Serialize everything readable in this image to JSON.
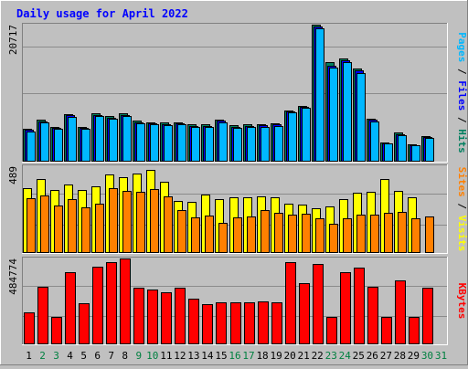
{
  "title": "Daily usage for April 2022",
  "colors": {
    "background": "#c0c0c0",
    "panel": "#c0c0c0",
    "title": "#0000ff",
    "grid": "#8b8b8b",
    "pages": "#00b7ff",
    "files": "#0000ff",
    "hits": "#007f5f",
    "visits": "#ffff00",
    "sites": "#ff8000",
    "kbytes": "#ff0000",
    "weekday": "#000000",
    "weekend": "#008040"
  },
  "chart_data": [
    {
      "type": "bar",
      "panel": "hits-files-pages",
      "ylabel_parts": [
        {
          "text": "Pages",
          "color_key": "pages"
        },
        {
          "text": " / ",
          "color_key": "weekday"
        },
        {
          "text": "Files",
          "color_key": "files"
        },
        {
          "text": " / ",
          "color_key": "weekday"
        },
        {
          "text": "Hits",
          "color_key": "hits"
        }
      ],
      "ymax_label": "20717",
      "ylim": [
        0,
        20717
      ],
      "categories": [
        "1",
        "2",
        "3",
        "4",
        "5",
        "6",
        "7",
        "8",
        "9",
        "10",
        "11",
        "12",
        "13",
        "14",
        "15",
        "16",
        "17",
        "18",
        "19",
        "20",
        "21",
        "22",
        "23",
        "24",
        "25",
        "26",
        "27",
        "28",
        "29",
        "30",
        "31"
      ],
      "series": [
        {
          "name": "Hits",
          "color_key": "hits",
          "values": [
            4800,
            6200,
            5200,
            7100,
            5100,
            7200,
            6800,
            7200,
            6100,
            5900,
            5800,
            5900,
            5500,
            5500,
            6300,
            5400,
            5500,
            5600,
            5700,
            7700,
            8400,
            20717,
            15000,
            15600,
            14000,
            6400,
            2800,
            4300,
            2500,
            3700,
            0
          ]
        },
        {
          "name": "Files",
          "color_key": "files",
          "values": [
            4700,
            6000,
            5000,
            6900,
            5000,
            7000,
            6600,
            7000,
            5900,
            5700,
            5600,
            5700,
            5300,
            5300,
            6100,
            5200,
            5300,
            5400,
            5500,
            7500,
            8200,
            20500,
            14500,
            15300,
            13700,
            6200,
            2700,
            4100,
            2400,
            3600,
            0
          ]
        },
        {
          "name": "Pages",
          "color_key": "pages",
          "values": [
            4500,
            5800,
            4900,
            6700,
            4800,
            6800,
            6400,
            6800,
            5700,
            5500,
            5400,
            5500,
            5100,
            5100,
            5900,
            5000,
            5100,
            5200,
            5300,
            7300,
            8000,
            20200,
            14200,
            15000,
            13400,
            6000,
            2600,
            3900,
            2300,
            3500,
            0
          ]
        }
      ]
    },
    {
      "type": "bar",
      "panel": "visits-sites",
      "ylabel_parts": [
        {
          "text": "Sites",
          "color_key": "sites"
        },
        {
          "text": " / ",
          "color_key": "weekday"
        },
        {
          "text": "Visits",
          "color_key": "visits"
        }
      ],
      "ymax_label": "489",
      "ylim": [
        0,
        489
      ],
      "categories": [
        "1",
        "2",
        "3",
        "4",
        "5",
        "6",
        "7",
        "8",
        "9",
        "10",
        "11",
        "12",
        "13",
        "14",
        "15",
        "16",
        "17",
        "18",
        "19",
        "20",
        "21",
        "22",
        "23",
        "24",
        "25",
        "26",
        "27",
        "28",
        "29",
        "30",
        "31"
      ],
      "series": [
        {
          "name": "Visits",
          "color_key": "visits",
          "values": [
            365,
            415,
            355,
            385,
            355,
            375,
            440,
            425,
            445,
            470,
            400,
            290,
            285,
            330,
            300,
            310,
            310,
            315,
            310,
            275,
            270,
            250,
            260,
            300,
            340,
            345,
            415,
            350,
            310,
            0,
            0
          ]
        },
        {
          "name": "Sites",
          "color_key": "sites",
          "values": [
            305,
            320,
            265,
            300,
            255,
            275,
            365,
            350,
            345,
            360,
            315,
            240,
            200,
            210,
            165,
            200,
            205,
            240,
            225,
            215,
            220,
            195,
            160,
            190,
            215,
            215,
            225,
            230,
            190,
            205,
            0
          ]
        }
      ]
    },
    {
      "type": "bar",
      "panel": "kbytes",
      "ylabel_parts": [
        {
          "text": "KBytes",
          "color_key": "kbytes"
        }
      ],
      "ymax_label": "484774",
      "ylim": [
        0,
        484774
      ],
      "categories": [
        "1",
        "2",
        "3",
        "4",
        "5",
        "6",
        "7",
        "8",
        "9",
        "10",
        "11",
        "12",
        "13",
        "14",
        "15",
        "16",
        "17",
        "18",
        "19",
        "20",
        "21",
        "22",
        "23",
        "24",
        "25",
        "26",
        "27",
        "28",
        "29",
        "30",
        "31"
      ],
      "series": [
        {
          "name": "KBytes",
          "color_key": "kbytes",
          "values": [
            178000,
            325000,
            152000,
            406000,
            230000,
            437000,
            462000,
            484774,
            318000,
            305000,
            290000,
            318000,
            254000,
            225000,
            232000,
            232000,
            232000,
            242000,
            235000,
            462000,
            342000,
            451000,
            152000,
            406000,
            431000,
            323000,
            152000,
            361000,
            152000,
            318000,
            0
          ]
        }
      ]
    }
  ],
  "days": [
    {
      "label": "1",
      "weekend": false
    },
    {
      "label": "2",
      "weekend": true
    },
    {
      "label": "3",
      "weekend": true
    },
    {
      "label": "4",
      "weekend": false
    },
    {
      "label": "5",
      "weekend": false
    },
    {
      "label": "6",
      "weekend": false
    },
    {
      "label": "7",
      "weekend": false
    },
    {
      "label": "8",
      "weekend": false
    },
    {
      "label": "9",
      "weekend": true
    },
    {
      "label": "10",
      "weekend": true
    },
    {
      "label": "11",
      "weekend": false
    },
    {
      "label": "12",
      "weekend": false
    },
    {
      "label": "13",
      "weekend": false
    },
    {
      "label": "14",
      "weekend": false
    },
    {
      "label": "15",
      "weekend": false
    },
    {
      "label": "16",
      "weekend": true
    },
    {
      "label": "17",
      "weekend": true
    },
    {
      "label": "18",
      "weekend": false
    },
    {
      "label": "19",
      "weekend": false
    },
    {
      "label": "20",
      "weekend": false
    },
    {
      "label": "21",
      "weekend": false
    },
    {
      "label": "22",
      "weekend": false
    },
    {
      "label": "23",
      "weekend": true
    },
    {
      "label": "24",
      "weekend": true
    },
    {
      "label": "25",
      "weekend": false
    },
    {
      "label": "26",
      "weekend": false
    },
    {
      "label": "27",
      "weekend": false
    },
    {
      "label": "28",
      "weekend": false
    },
    {
      "label": "29",
      "weekend": false
    },
    {
      "label": "30",
      "weekend": true
    },
    {
      "label": "31",
      "weekend": true
    }
  ]
}
